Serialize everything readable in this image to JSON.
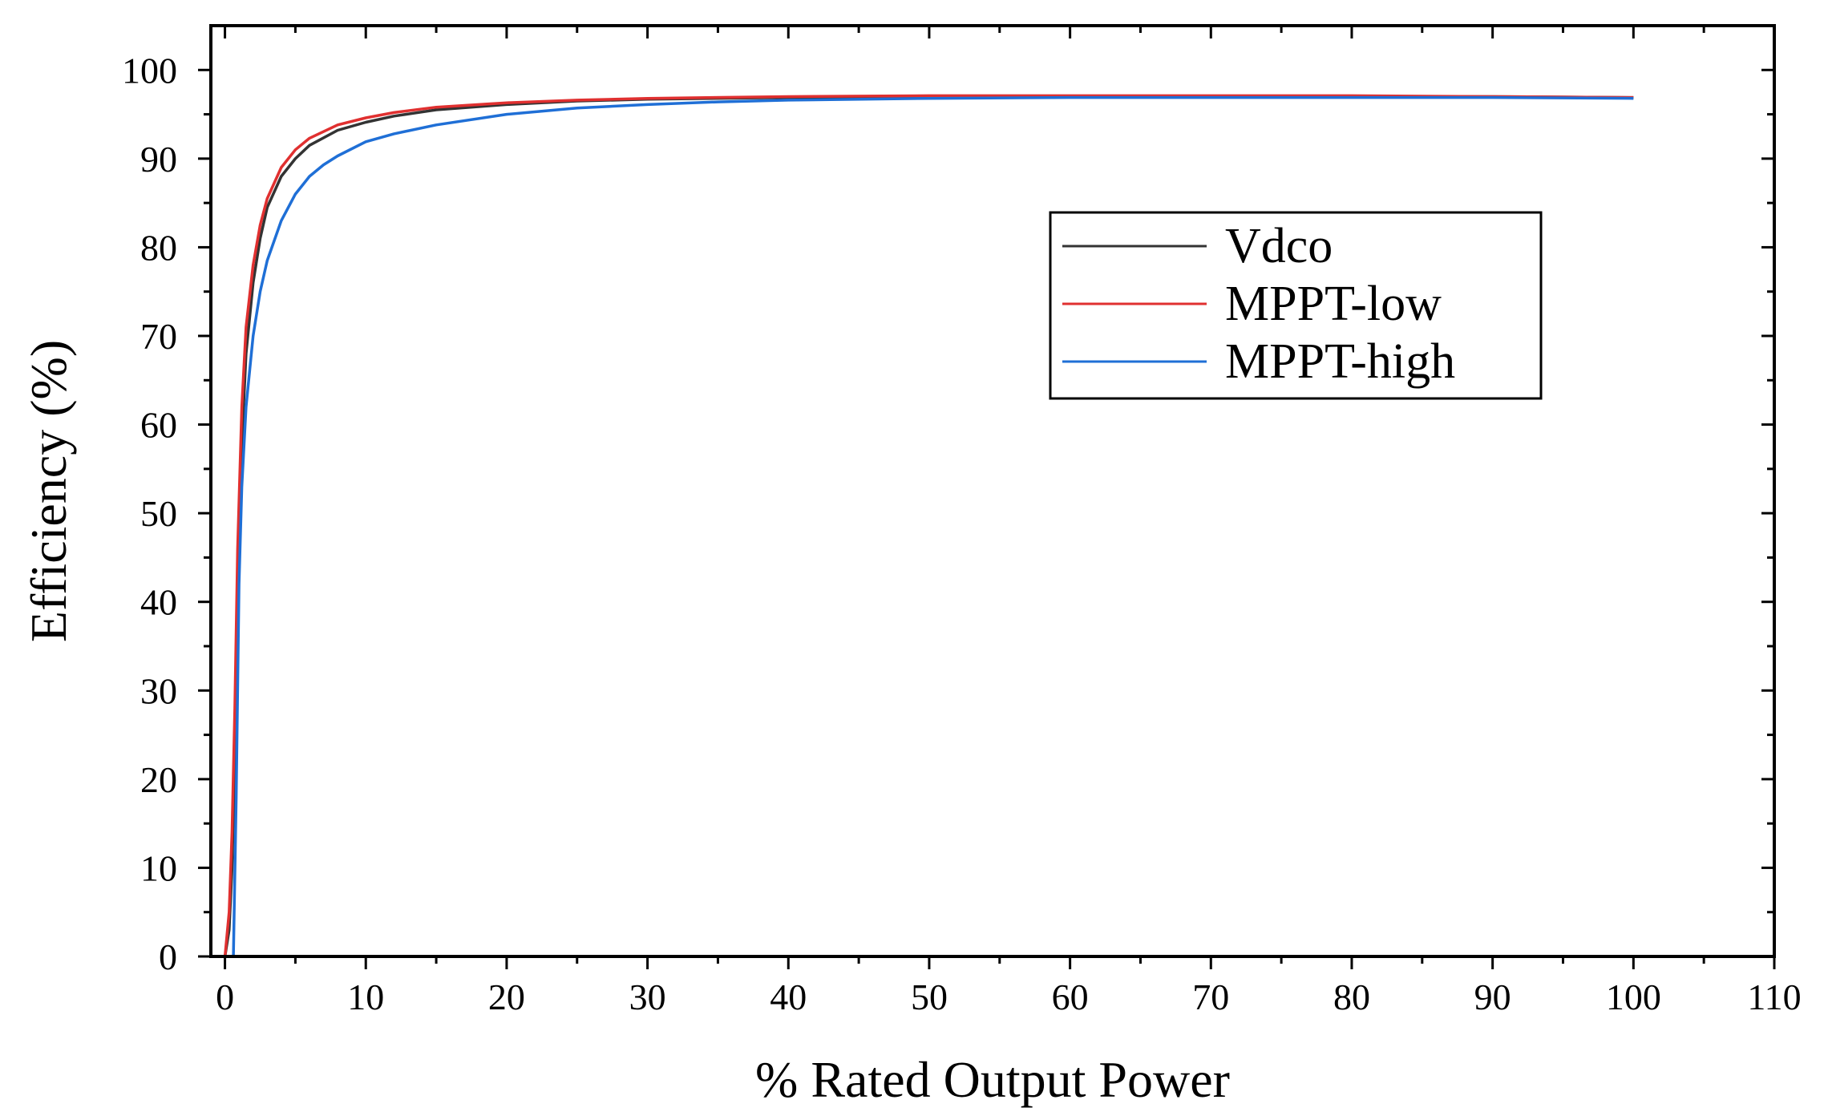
{
  "chart_data": {
    "type": "line",
    "title": "",
    "xlabel": "% Rated Output Power",
    "ylabel": "Efficiency (%)",
    "xlim": [
      -1,
      110
    ],
    "ylim": [
      0,
      105
    ],
    "xticks": [
      0,
      10,
      20,
      30,
      40,
      50,
      60,
      70,
      80,
      90,
      100,
      110
    ],
    "yticks": [
      0,
      10,
      20,
      30,
      40,
      50,
      60,
      70,
      80,
      90,
      100
    ],
    "grid": false,
    "legend_position": "upper-right",
    "series": [
      {
        "name": "Vdco",
        "color": "#333333",
        "x": [
          0.0,
          0.3,
          0.5,
          0.7,
          0.9,
          1.2,
          1.5,
          2,
          2.5,
          3,
          4,
          5,
          6,
          8,
          10,
          12,
          15,
          20,
          25,
          30,
          40,
          50,
          60,
          70,
          80,
          90,
          100
        ],
        "y": [
          0,
          3,
          10,
          22,
          40,
          58,
          68,
          76,
          81,
          84.5,
          88,
          90,
          91.5,
          93.2,
          94.1,
          94.8,
          95.5,
          96.1,
          96.5,
          96.7,
          96.9,
          97.0,
          97.0,
          97.0,
          97.0,
          97.0,
          96.9
        ]
      },
      {
        "name": "MPPT-low",
        "color": "#e03030",
        "x": [
          0.0,
          0.3,
          0.5,
          0.7,
          0.9,
          1.2,
          1.5,
          2,
          2.5,
          3,
          4,
          5,
          6,
          8,
          10,
          12,
          15,
          20,
          25,
          30,
          40,
          50,
          60,
          70,
          80,
          90,
          100
        ],
        "y": [
          0,
          5,
          14,
          28,
          46,
          62,
          71,
          78,
          82.5,
          85.5,
          89,
          91,
          92.3,
          93.8,
          94.6,
          95.2,
          95.8,
          96.3,
          96.6,
          96.8,
          97.0,
          97.1,
          97.1,
          97.1,
          97.1,
          97.0,
          96.9
        ]
      },
      {
        "name": "MPPT-high",
        "color": "#1f6fd6",
        "x": [
          0.6,
          0.8,
          1.0,
          1.2,
          1.5,
          2,
          2.5,
          3,
          4,
          5,
          6,
          7,
          8,
          10,
          12,
          15,
          20,
          25,
          30,
          35,
          40,
          50,
          60,
          70,
          80,
          90,
          100
        ],
        "y": [
          0,
          18,
          42,
          53,
          62,
          70,
          75,
          78.5,
          83,
          86,
          88,
          89.3,
          90.3,
          91.9,
          92.8,
          93.8,
          95.0,
          95.7,
          96.1,
          96.4,
          96.6,
          96.8,
          96.9,
          96.9,
          96.9,
          96.9,
          96.8
        ]
      }
    ]
  }
}
